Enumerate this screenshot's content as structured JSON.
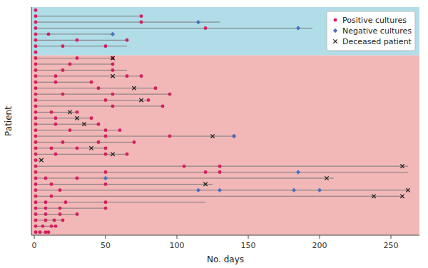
{
  "chart_data": {
    "type": "swimmer",
    "xlabel": "No. days",
    "ylabel": "Patient",
    "xlim": [
      -2,
      270
    ],
    "xticks": [
      0,
      50,
      100,
      150,
      200,
      250
    ],
    "ylim": [
      0.5,
      38.5
    ],
    "tick_labels": "x",
    "legend": "upper right",
    "bands": [
      {
        "ylim": [
          0.5,
          30.5
        ],
        "color": "#f2b8b8"
      },
      {
        "ylim": [
          30.5,
          38.5
        ],
        "color": "#b0dde8"
      }
    ],
    "rows": [
      38,
      37,
      36,
      35,
      34,
      33,
      32,
      31,
      30,
      29,
      28,
      27,
      26,
      25,
      24,
      23,
      22,
      21,
      20,
      19,
      18,
      17,
      16,
      15,
      14,
      13,
      12,
      11,
      10,
      9,
      8,
      7,
      6,
      5,
      4,
      3,
      2,
      1
    ],
    "lines": {
      "color": "#7a7a7a",
      "start": 0,
      "values": [
        1,
        75,
        130,
        195,
        55,
        65,
        65,
        1,
        55,
        55,
        65,
        75,
        40,
        85,
        95,
        80,
        90,
        30,
        40,
        45,
        60,
        140,
        70,
        50,
        65,
        5,
        262,
        262,
        210,
        125,
        262,
        258,
        120,
        50,
        30,
        20,
        15,
        10
      ]
    },
    "series": [
      {
        "name": "Positive cultures",
        "color": "#d42060",
        "marker": "circle",
        "values": [
          [
            1
          ],
          [
            1,
            75
          ],
          [
            1,
            75
          ],
          [
            1,
            120
          ],
          [
            1,
            10
          ],
          [
            1,
            30,
            65
          ],
          [
            1,
            20,
            50
          ],
          [
            1
          ],
          [
            1,
            30,
            55
          ],
          [
            1,
            25,
            55
          ],
          [
            1,
            20,
            55
          ],
          [
            1,
            15,
            65,
            75
          ],
          [
            1,
            15,
            40
          ],
          [
            1,
            45,
            85
          ],
          [
            1,
            20,
            55,
            95
          ],
          [
            1,
            50,
            80
          ],
          [
            1,
            55,
            90
          ],
          [
            1,
            12,
            30
          ],
          [
            1,
            15,
            40
          ],
          [
            1,
            15,
            45
          ],
          [
            1,
            25,
            50,
            60
          ],
          [
            1,
            50,
            95,
            140
          ],
          [
            1,
            20,
            45,
            70
          ],
          [
            1,
            12,
            30,
            50
          ],
          [
            1,
            15,
            50,
            65
          ],
          [
            1
          ],
          [
            1,
            105,
            130
          ],
          [
            1,
            50,
            120,
            130
          ],
          [
            1,
            8,
            30
          ],
          [
            1,
            12,
            50
          ],
          [
            1,
            18
          ],
          [
            1,
            12
          ],
          [
            1,
            8,
            22,
            50
          ],
          [
            1,
            8,
            18,
            50
          ],
          [
            1,
            8,
            18,
            30
          ],
          [
            1,
            8,
            14,
            20
          ],
          [
            1,
            6,
            12,
            15
          ],
          [
            1,
            4,
            8,
            10
          ]
        ]
      },
      {
        "name": "Negative cultures",
        "color": "#4a72c0",
        "marker": "diamond",
        "values": [
          [],
          [],
          [
            115
          ],
          [
            185
          ],
          [
            55
          ],
          [],
          [],
          [],
          [],
          [],
          [],
          [],
          [],
          [],
          [],
          [],
          [],
          [],
          [],
          [],
          [],
          [
            140
          ],
          [],
          [],
          [],
          [],
          [],
          [
            185
          ],
          [
            50
          ],
          [],
          [
            115,
            130,
            182,
            200
          ],
          [],
          [],
          [],
          [],
          [],
          [],
          []
        ]
      },
      {
        "name": "Deceased patient",
        "color": "#1a1a1a",
        "marker": "x",
        "values": [
          [],
          [],
          [],
          [],
          [],
          [],
          [],
          [],
          [
            55
          ],
          [],
          [],
          [
            55
          ],
          [],
          [
            70
          ],
          [],
          [
            75
          ],
          [],
          [
            25
          ],
          [
            30
          ],
          [
            35
          ],
          [],
          [
            125
          ],
          [],
          [
            40
          ],
          [
            55
          ],
          [
            5
          ],
          [
            258
          ],
          [],
          [
            205
          ],
          [
            120
          ],
          [
            262
          ],
          [
            238,
            258
          ],
          [],
          [],
          [],
          [],
          [],
          []
        ]
      }
    ]
  }
}
